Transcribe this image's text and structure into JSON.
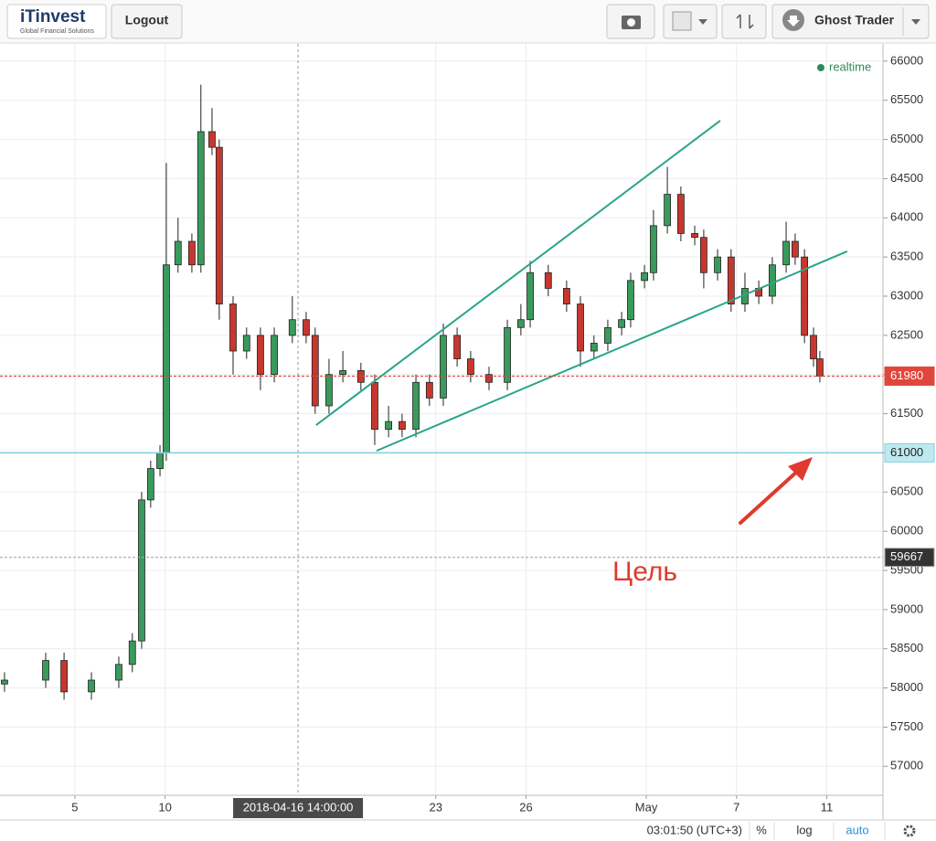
{
  "toolbar": {
    "logo": "iTinvest",
    "logo_tagline": "Global Financial Solutions",
    "logout": "Logout",
    "account": "Ghost Trader"
  },
  "chart_data": {
    "type": "candlestick",
    "x": [
      -2.34,
      -0.97,
      -0.36,
      0.55,
      1.46,
      1.91,
      2.22,
      2.52,
      2.83,
      3.04,
      3.43,
      3.89,
      4.19,
      4.56,
      4.8,
      5.26,
      5.71,
      6.17,
      6.63,
      7.23,
      7.69,
      7.99,
      8.45,
      8.91,
      9.51,
      9.97,
      10.43,
      10.88,
      11.34,
      11.79,
      12.25,
      12.71,
      13.16,
      13.77,
      14.38,
      14.83,
      15.14,
      15.74,
      16.35,
      16.81,
      17.26,
      17.72,
      18.18,
      18.48,
      18.94,
      19.24,
      19.7,
      20.15,
      20.61,
      20.91,
      21.37,
      21.82,
      22.28,
      22.74,
      23.19,
      23.65,
      23.95,
      24.26,
      24.56,
      24.77
    ],
    "open": [
      58050,
      58100,
      58350,
      57950,
      58100,
      58300,
      58600,
      60400,
      60800,
      61000,
      63400,
      63700,
      63400,
      65100,
      64900,
      62900,
      62300,
      62500,
      62000,
      62500,
      62700,
      62500,
      61600,
      62000,
      62050,
      61900,
      61300,
      61400,
      61300,
      61900,
      61700,
      62500,
      62200,
      62000,
      61900,
      62600,
      62700,
      63300,
      63100,
      62900,
      62300,
      62400,
      62600,
      62700,
      63200,
      63300,
      63900,
      64300,
      63800,
      63750,
      63300,
      63500,
      62900,
      63100,
      63000,
      63400,
      63700,
      63500,
      62500,
      62200
    ],
    "high": [
      58200,
      58450,
      58450,
      58200,
      58400,
      58700,
      60500,
      60900,
      61100,
      64700,
      64000,
      63800,
      65700,
      65400,
      65000,
      63000,
      62600,
      62600,
      62600,
      63000,
      62800,
      62600,
      62200,
      62300,
      62150,
      62000,
      61600,
      61500,
      62000,
      62000,
      62650,
      62600,
      62300,
      62100,
      62700,
      62900,
      63450,
      63400,
      63200,
      63000,
      62500,
      62700,
      62800,
      63300,
      63400,
      64100,
      64650,
      64400,
      63900,
      63850,
      63600,
      63600,
      63300,
      63200,
      63500,
      63950,
      63800,
      63600,
      62600,
      62300
    ],
    "low": [
      57950,
      58000,
      57850,
      57850,
      58000,
      58200,
      58500,
      60300,
      60700,
      60900,
      63300,
      63300,
      63300,
      64800,
      62700,
      62000,
      62200,
      61800,
      61900,
      62400,
      62400,
      61500,
      61500,
      61900,
      61800,
      61100,
      61200,
      61200,
      61200,
      61600,
      61600,
      62100,
      61900,
      61800,
      61800,
      62500,
      62600,
      63000,
      62800,
      62100,
      62200,
      62300,
      62500,
      62600,
      63100,
      63200,
      63800,
      63700,
      63650,
      63100,
      63200,
      62800,
      62800,
      62900,
      62900,
      63300,
      63400,
      62400,
      62100,
      61900
    ],
    "close": [
      58100,
      58350,
      57950,
      58100,
      58300,
      58600,
      60400,
      60800,
      61000,
      63400,
      63700,
      63400,
      65100,
      64900,
      62900,
      62300,
      62500,
      62000,
      62500,
      62700,
      62500,
      61600,
      62000,
      62050,
      61900,
      61300,
      61400,
      61300,
      61900,
      61700,
      62500,
      62200,
      62000,
      61900,
      62600,
      62700,
      63300,
      63100,
      62900,
      62300,
      62400,
      62600,
      62700,
      63200,
      63300,
      63900,
      64300,
      63800,
      63750,
      63300,
      63500,
      62900,
      63100,
      63000,
      63400,
      63700,
      63500,
      62500,
      62200,
      61980
    ],
    "up_color": "#3a9a5c",
    "down_color": "#c7372f",
    "xlim": [
      -2.49,
      26.87
    ],
    "xticks": [
      {
        "value": 0,
        "label": "5"
      },
      {
        "value": 3,
        "label": "10"
      },
      {
        "value": 12,
        "label": "23"
      },
      {
        "value": 15,
        "label": "26"
      },
      {
        "value": 19,
        "label": "May"
      },
      {
        "value": 22,
        "label": "7"
      },
      {
        "value": 25,
        "label": "11"
      }
    ],
    "ylim": [
      56630,
      66220
    ],
    "yticks": [
      57000,
      57500,
      58000,
      58500,
      59000,
      59500,
      60000,
      60500,
      61000,
      61500,
      62000,
      62500,
      63000,
      63500,
      64000,
      64500,
      65000,
      65500,
      66000
    ],
    "grid": true,
    "crosshair": {
      "value": 7.42,
      "label": "2018-04-16 14:00:00"
    },
    "price_lines": [
      {
        "value": 61980,
        "color": "#e0463b",
        "style": "dashed",
        "label_fill": "#e0463b",
        "label_color": "#ffffff"
      },
      {
        "value": 61000,
        "color": "#7fd0dc",
        "style": "solid",
        "label_fill": "#bfe9f0",
        "label_color": "#222222"
      },
      {
        "value": 59667,
        "color": "#aaaaaa",
        "style": "dashed",
        "label_fill": "#333333",
        "label_color": "#ffffff"
      }
    ],
    "trendlines": [
      {
        "x": [
          8.02,
          21.46
        ],
        "y": [
          61354,
          65241
        ],
        "color": "#2aa58a"
      },
      {
        "x": [
          10.03,
          25.68
        ],
        "y": [
          61027,
          63572
        ],
        "color": "#2aa58a"
      }
    ],
    "annotation": "Цель",
    "realtime_label": "realtime"
  },
  "status_bar": {
    "time": "03:01:50 (UTC+3)",
    "percent": "%",
    "log": "log",
    "auto": "auto"
  }
}
